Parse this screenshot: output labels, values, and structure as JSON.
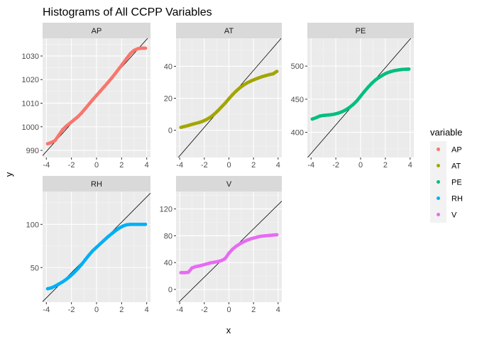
{
  "chart_data": {
    "type": "scatter",
    "title": "Histograms of All CCPP Variables",
    "xlabel": "x",
    "ylabel": "y",
    "legend": {
      "title": "variable",
      "placement": "right",
      "entries": [
        {
          "name": "AP",
          "color": "#F8766D"
        },
        {
          "name": "AT",
          "color": "#A3A500"
        },
        {
          "name": "PE",
          "color": "#00BF7D"
        },
        {
          "name": "RH",
          "color": "#00B0F6"
        },
        {
          "name": "V",
          "color": "#E76BF3"
        }
      ]
    },
    "grid": true,
    "panels": [
      {
        "name": "AP",
        "color": "#F8766D",
        "xlim": [
          -4.3,
          4.3
        ],
        "ylim": [
          987,
          1037.5
        ],
        "x_ticks": [
          -4,
          -2,
          0,
          2,
          4
        ],
        "y_ticks": [
          990,
          1000,
          1010,
          1020,
          1030
        ],
        "x_tick_labels": [
          "-4",
          "-2",
          "0",
          "2",
          "4"
        ],
        "y_tick_labels": [
          "990",
          "1000",
          "1010",
          "1020",
          "1030"
        ],
        "line": {
          "intercept": 1013.3,
          "slope": 5.94
        },
        "points": [
          [
            -3.9,
            992.8
          ],
          [
            -3.6,
            993.3
          ],
          [
            -3.3,
            994.2
          ],
          [
            -3.0,
            996.5
          ],
          [
            -2.7,
            998.8
          ],
          [
            -2.4,
            1000.3
          ],
          [
            -2.1,
            1001.6
          ],
          [
            -1.8,
            1002.9
          ],
          [
            -1.5,
            1004.2
          ],
          [
            -1.2,
            1005.8
          ],
          [
            -0.9,
            1007.7
          ],
          [
            -0.6,
            1009.6
          ],
          [
            -0.3,
            1011.5
          ],
          [
            0.0,
            1013.3
          ],
          [
            0.3,
            1015.1
          ],
          [
            0.6,
            1016.9
          ],
          [
            0.9,
            1018.7
          ],
          [
            1.2,
            1020.6
          ],
          [
            1.5,
            1022.6
          ],
          [
            1.8,
            1024.7
          ],
          [
            2.1,
            1026.8
          ],
          [
            2.4,
            1029.0
          ],
          [
            2.7,
            1031.0
          ],
          [
            3.0,
            1032.4
          ],
          [
            3.3,
            1033.1
          ],
          [
            3.6,
            1033.3
          ],
          [
            3.9,
            1033.3
          ]
        ]
      },
      {
        "name": "AT",
        "color": "#A3A500",
        "xlim": [
          -4.3,
          4.3
        ],
        "ylim": [
          -17,
          57.5
        ],
        "x_ticks": [
          -4,
          -2,
          0,
          2,
          4
        ],
        "y_ticks": [
          0,
          20,
          40
        ],
        "x_tick_labels": [
          "-4",
          "-2",
          "0",
          "2",
          "4"
        ],
        "y_tick_labels": [
          "0",
          "20",
          "40"
        ],
        "line": {
          "intercept": 19.65,
          "slope": 8.9
        },
        "points": [
          [
            -3.9,
            1.8
          ],
          [
            -3.6,
            2.4
          ],
          [
            -3.3,
            3.0
          ],
          [
            -3.0,
            3.7
          ],
          [
            -2.7,
            4.3
          ],
          [
            -2.4,
            4.9
          ],
          [
            -2.1,
            5.7
          ],
          [
            -1.8,
            6.8
          ],
          [
            -1.5,
            8.2
          ],
          [
            -1.2,
            10.0
          ],
          [
            -0.9,
            12.2
          ],
          [
            -0.6,
            14.6
          ],
          [
            -0.3,
            17.0
          ],
          [
            0.0,
            19.7
          ],
          [
            0.3,
            22.3
          ],
          [
            0.6,
            24.6
          ],
          [
            0.9,
            26.6
          ],
          [
            1.2,
            28.3
          ],
          [
            1.5,
            29.7
          ],
          [
            1.8,
            30.8
          ],
          [
            2.1,
            31.8
          ],
          [
            2.4,
            32.7
          ],
          [
            2.7,
            33.5
          ],
          [
            3.0,
            34.2
          ],
          [
            3.3,
            34.8
          ],
          [
            3.6,
            35.3
          ],
          [
            3.9,
            36.8
          ]
        ]
      },
      {
        "name": "PE",
        "color": "#00BF7D",
        "xlim": [
          -4.3,
          4.3
        ],
        "ylim": [
          362,
          542
        ],
        "x_ticks": [
          -4,
          -2,
          0,
          2,
          4
        ],
        "y_ticks": [
          400,
          450,
          500
        ],
        "x_tick_labels": [
          "-4",
          "-2",
          "0",
          "2",
          "4"
        ],
        "y_tick_labels": [
          "400",
          "450",
          "500"
        ],
        "line": {
          "intercept": 454.4,
          "slope": 21.6
        },
        "points": [
          [
            -3.9,
            420.0
          ],
          [
            -3.6,
            422.0
          ],
          [
            -3.3,
            424.5
          ],
          [
            -3.0,
            425.5
          ],
          [
            -2.7,
            426.0
          ],
          [
            -2.4,
            426.5
          ],
          [
            -2.1,
            427.5
          ],
          [
            -1.8,
            429.0
          ],
          [
            -1.5,
            431.0
          ],
          [
            -1.2,
            433.8
          ],
          [
            -0.9,
            437.5
          ],
          [
            -0.6,
            442.0
          ],
          [
            -0.3,
            447.5
          ],
          [
            0.0,
            454.5
          ],
          [
            0.3,
            461.5
          ],
          [
            0.6,
            468.0
          ],
          [
            0.9,
            474.0
          ],
          [
            1.2,
            479.0
          ],
          [
            1.5,
            483.0
          ],
          [
            1.8,
            486.5
          ],
          [
            2.1,
            489.5
          ],
          [
            2.4,
            491.5
          ],
          [
            2.7,
            493.0
          ],
          [
            3.0,
            494.0
          ],
          [
            3.3,
            494.8
          ],
          [
            3.6,
            495.2
          ],
          [
            3.9,
            495.5
          ]
        ]
      },
      {
        "name": "RH",
        "color": "#00B0F6",
        "xlim": [
          -4.3,
          4.3
        ],
        "ylim": [
          10,
          138
        ],
        "x_ticks": [
          -4,
          -2,
          0,
          2,
          4
        ],
        "y_ticks": [
          50,
          100
        ],
        "x_tick_labels": [
          "-4",
          "-2",
          "0",
          "2",
          "4"
        ],
        "y_tick_labels": [
          "50",
          "100"
        ],
        "line": {
          "intercept": 73.3,
          "slope": 14.6
        },
        "points": [
          [
            -3.9,
            25.5
          ],
          [
            -3.6,
            26.5
          ],
          [
            -3.3,
            28.5
          ],
          [
            -3.0,
            31.0
          ],
          [
            -2.7,
            33.5
          ],
          [
            -2.4,
            36.5
          ],
          [
            -2.1,
            40.0
          ],
          [
            -1.8,
            44.0
          ],
          [
            -1.5,
            48.5
          ],
          [
            -1.2,
            53.5
          ],
          [
            -0.9,
            59.0
          ],
          [
            -0.6,
            64.5
          ],
          [
            -0.3,
            69.5
          ],
          [
            0.0,
            73.5
          ],
          [
            0.3,
            77.5
          ],
          [
            0.6,
            81.5
          ],
          [
            0.9,
            85.5
          ],
          [
            1.2,
            89.0
          ],
          [
            1.5,
            92.5
          ],
          [
            1.8,
            95.5
          ],
          [
            2.1,
            98.0
          ],
          [
            2.4,
            99.5
          ],
          [
            2.7,
            100.0
          ],
          [
            3.0,
            100.0
          ],
          [
            3.3,
            100.0
          ],
          [
            3.6,
            100.0
          ],
          [
            3.9,
            100.0
          ]
        ]
      },
      {
        "name": "V",
        "color": "#E76BF3",
        "xlim": [
          -4.3,
          4.3
        ],
        "ylim": [
          -19,
          146
        ],
        "x_ticks": [
          -4,
          -2,
          0,
          2,
          4
        ],
        "y_ticks": [
          0,
          40,
          80,
          120
        ],
        "x_tick_labels": [
          "-4",
          "-2",
          "0",
          "2",
          "4"
        ],
        "y_tick_labels": [
          "0",
          "40",
          "80",
          "120"
        ],
        "line": {
          "intercept": 54.3,
          "slope": 18.0
        },
        "points": [
          [
            -3.9,
            25.0
          ],
          [
            -3.6,
            25.0
          ],
          [
            -3.3,
            25.5
          ],
          [
            -3.0,
            32.0
          ],
          [
            -2.7,
            34.0
          ],
          [
            -2.4,
            35.0
          ],
          [
            -2.1,
            36.5
          ],
          [
            -1.8,
            38.0
          ],
          [
            -1.5,
            39.5
          ],
          [
            -1.2,
            40.5
          ],
          [
            -0.9,
            41.5
          ],
          [
            -0.6,
            43.0
          ],
          [
            -0.3,
            46.0
          ],
          [
            0.0,
            54.0
          ],
          [
            0.3,
            60.0
          ],
          [
            0.6,
            64.5
          ],
          [
            0.9,
            68.0
          ],
          [
            1.2,
            71.0
          ],
          [
            1.5,
            73.5
          ],
          [
            1.8,
            75.5
          ],
          [
            2.1,
            77.0
          ],
          [
            2.4,
            78.5
          ],
          [
            2.7,
            79.5
          ],
          [
            3.0,
            80.0
          ],
          [
            3.3,
            80.5
          ],
          [
            3.6,
            81.0
          ],
          [
            3.9,
            81.5
          ]
        ]
      }
    ]
  }
}
